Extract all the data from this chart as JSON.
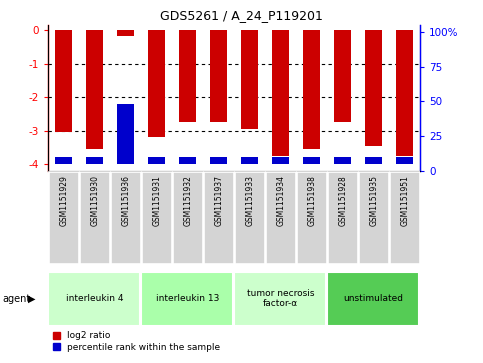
{
  "title": "GDS5261 / A_24_P119201",
  "samples": [
    "GSM1151929",
    "GSM1151930",
    "GSM1151936",
    "GSM1151931",
    "GSM1151932",
    "GSM1151937",
    "GSM1151933",
    "GSM1151934",
    "GSM1151938",
    "GSM1151928",
    "GSM1151935",
    "GSM1151951"
  ],
  "log2_ratio": [
    -3.05,
    -3.55,
    -0.18,
    -3.2,
    -2.75,
    -2.75,
    -2.95,
    -3.75,
    -3.55,
    -2.75,
    -3.45,
    -3.75
  ],
  "percentile_rank": [
    5.0,
    5.0,
    45.0,
    5.0,
    5.0,
    5.0,
    5.0,
    5.0,
    5.0,
    5.0,
    5.0,
    5.0
  ],
  "agents": [
    {
      "label": "interleukin 4",
      "start": 0,
      "end": 3,
      "color": "#ccffcc"
    },
    {
      "label": "interleukin 13",
      "start": 3,
      "end": 6,
      "color": "#aaffaa"
    },
    {
      "label": "tumor necrosis\nfactor-α",
      "start": 6,
      "end": 9,
      "color": "#ccffcc"
    },
    {
      "label": "unstimulated",
      "start": 9,
      "end": 12,
      "color": "#55cc55"
    }
  ],
  "ylim_left": [
    -4.2,
    0.15
  ],
  "ylim_right": [
    0,
    105
  ],
  "yticks_left": [
    0,
    -1,
    -2,
    -3,
    -4
  ],
  "yticks_right": [
    0,
    25,
    50,
    75,
    100
  ],
  "ytick_labels_right": [
    "0",
    "25",
    "50",
    "75",
    "100%"
  ],
  "bar_color": "#cc0000",
  "blue_color": "#0000cc",
  "bar_width": 0.55,
  "legend_red_label": "log2 ratio",
  "legend_blue_label": "percentile rank within the sample"
}
